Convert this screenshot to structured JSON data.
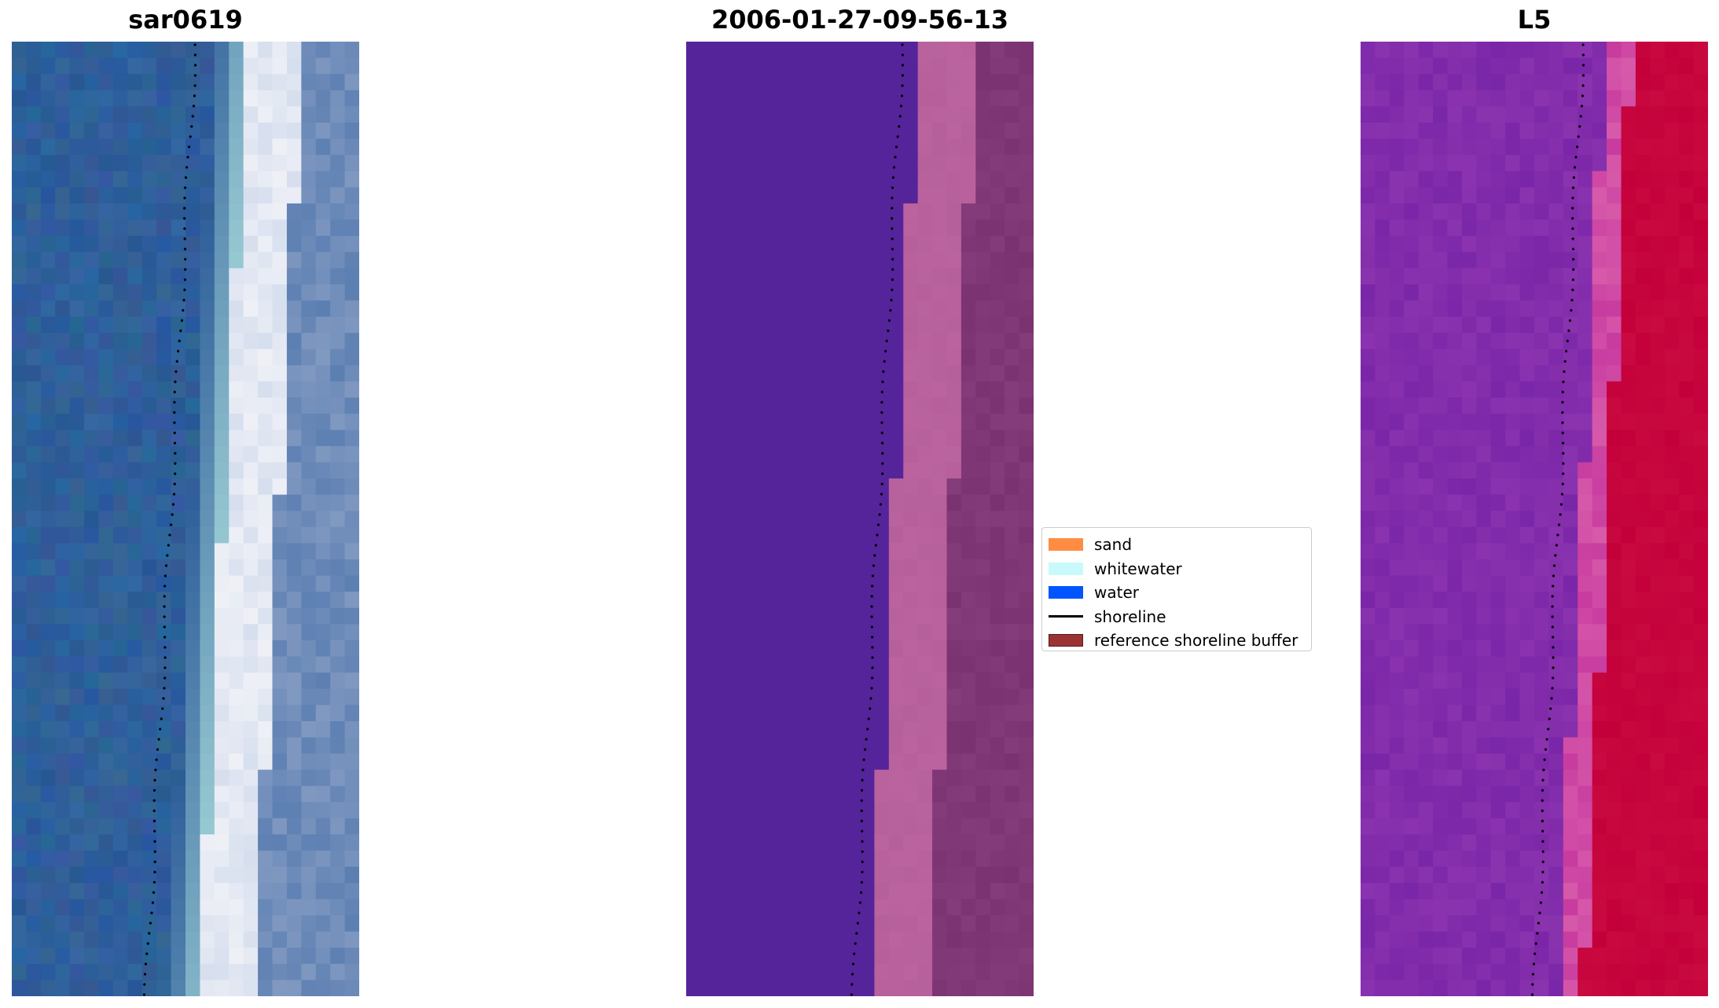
{
  "panels": [
    {
      "title": "sar0619",
      "style": "rgb"
    },
    {
      "title": "2006-01-27-09-56-13",
      "style": "classified"
    },
    {
      "title": "L5",
      "style": "index"
    }
  ],
  "legend": {
    "items": [
      {
        "label": "sand",
        "color": "#ff8c42",
        "kind": "patch"
      },
      {
        "label": "whitewater",
        "color": "#c8fafc",
        "kind": "patch"
      },
      {
        "label": "water",
        "color": "#0055ff",
        "kind": "patch"
      },
      {
        "label": "shoreline",
        "color": "#000000",
        "kind": "line"
      },
      {
        "label": "reference shoreline buffer",
        "color": "#9b3335",
        "kind": "patch"
      }
    ]
  },
  "colors": {
    "rgb_water": "#2f5f9a",
    "rgb_surf": "#eef0f6",
    "rgb_land": "#5c7fb2",
    "class_water": "#55249a",
    "class_buffer": "#b55f9b",
    "class_land": "#7a3270",
    "index_low": "#7a26a8",
    "index_high": "#c4003a"
  }
}
